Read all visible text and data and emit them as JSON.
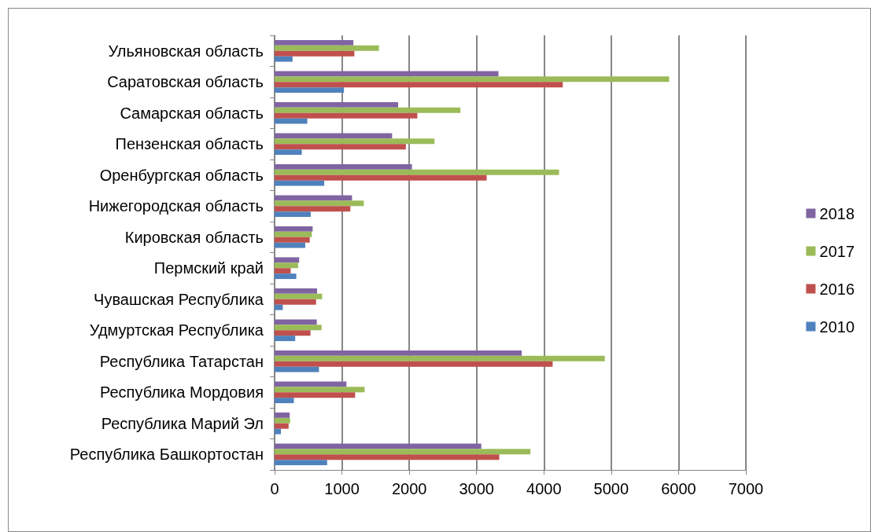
{
  "chart_data": {
    "type": "bar",
    "orientation": "horizontal",
    "categories": [
      "Ульяновская область",
      "Саратовская область",
      "Самарская область",
      "Пензенская область",
      "Оренбургская область",
      "Нижегородская область",
      "Кировская область",
      "Пермский край",
      "Чувашская Республика",
      "Удмуртская Республика",
      "Республика Татарстан",
      "Республика Мордовия",
      "Республика Марий Эл",
      "Республика Башкортостан"
    ],
    "series": [
      {
        "name": "2018",
        "color": "#8064a2",
        "values": [
          1170,
          3325,
          1835,
          1745,
          2040,
          1150,
          565,
          365,
          631,
          627,
          3670,
          1067,
          224,
          3070
        ]
      },
      {
        "name": "2017",
        "color": "#9bbb59",
        "values": [
          1550,
          5860,
          2760,
          2375,
          4225,
          1325,
          553,
          349,
          706,
          698,
          4905,
          1337,
          231,
          3800
        ]
      },
      {
        "name": "2016",
        "color": "#c0504d",
        "values": [
          1185,
          4280,
          2120,
          1950,
          3150,
          1125,
          522,
          239,
          616,
          533,
          4130,
          1196,
          208,
          3337
        ]
      },
      {
        "name": "2010",
        "color": "#4f81bd",
        "values": [
          267,
          1030,
          486,
          404,
          737,
          537,
          455,
          322,
          122,
          306,
          659,
          286,
          94,
          780
        ]
      }
    ],
    "xlim": [
      0,
      7000
    ],
    "xticks": [
      0,
      1000,
      2000,
      3000,
      4000,
      5000,
      6000,
      7000
    ],
    "grid": "x",
    "legend": "right"
  }
}
